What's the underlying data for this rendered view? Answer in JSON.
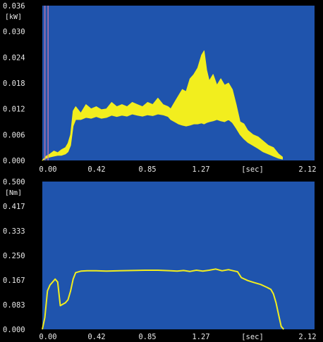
{
  "colors": {
    "plot_bg": "#1f54ad",
    "frame": "#000000",
    "trace": "#f2ee1e",
    "cursor": "#c878a8",
    "text": "#e8e8e8"
  },
  "chart_data": [
    {
      "type": "area",
      "ylabel": "[kW]",
      "xlabel": "[sec]",
      "xlim": [
        0.0,
        2.12
      ],
      "ylim": [
        0.0,
        0.036
      ],
      "x_ticks": [
        "0.00",
        "0.42",
        "0.85",
        "1.27",
        "2.12"
      ],
      "x_unit_label": "[sec]",
      "y_ticks": [
        "0.000",
        "0.006",
        "0.012",
        "0.018",
        "0.024",
        "0.030",
        "0.036"
      ],
      "grid": false,
      "series": [
        {
          "upper": {
            "x": [
              0.0,
              0.03,
              0.06,
              0.09,
              0.12,
              0.15,
              0.18,
              0.2,
              0.22,
              0.24,
              0.26,
              0.3,
              0.34,
              0.38,
              0.42,
              0.46,
              0.5,
              0.54,
              0.58,
              0.62,
              0.66,
              0.7,
              0.74,
              0.78,
              0.82,
              0.86,
              0.9,
              0.94,
              0.98,
              1.0,
              1.03,
              1.06,
              1.09,
              1.12,
              1.15,
              1.18,
              1.21,
              1.24,
              1.26,
              1.28,
              1.3,
              1.33,
              1.36,
              1.39,
              1.42,
              1.45,
              1.48,
              1.51,
              1.54,
              1.57,
              1.6,
              1.64,
              1.68,
              1.72,
              1.76,
              1.8,
              1.84,
              1.87
            ],
            "y": [
              0.0,
              0.001,
              0.0015,
              0.0022,
              0.0018,
              0.0025,
              0.003,
              0.004,
              0.006,
              0.0115,
              0.0125,
              0.011,
              0.013,
              0.012,
              0.0125,
              0.0118,
              0.012,
              0.0135,
              0.0125,
              0.013,
              0.0125,
              0.0135,
              0.013,
              0.0125,
              0.0135,
              0.013,
              0.0145,
              0.013,
              0.0125,
              0.012,
              0.0135,
              0.015,
              0.0165,
              0.016,
              0.019,
              0.02,
              0.0215,
              0.0245,
              0.0255,
              0.021,
              0.0185,
              0.02,
              0.0175,
              0.019,
              0.0175,
              0.018,
              0.0165,
              0.013,
              0.009,
              0.0085,
              0.007,
              0.006,
              0.0055,
              0.0045,
              0.0035,
              0.003,
              0.0015,
              0.0008
            ]
          },
          "lower": {
            "x": [
              0.0,
              0.03,
              0.06,
              0.09,
              0.12,
              0.15,
              0.18,
              0.2,
              0.22,
              0.24,
              0.26,
              0.3,
              0.34,
              0.38,
              0.42,
              0.46,
              0.5,
              0.54,
              0.58,
              0.62,
              0.66,
              0.7,
              0.74,
              0.78,
              0.82,
              0.86,
              0.9,
              0.94,
              0.98,
              1.0,
              1.03,
              1.06,
              1.09,
              1.12,
              1.15,
              1.18,
              1.21,
              1.24,
              1.26,
              1.28,
              1.3,
              1.33,
              1.36,
              1.39,
              1.42,
              1.45,
              1.48,
              1.51,
              1.54,
              1.57,
              1.6,
              1.64,
              1.68,
              1.72,
              1.76,
              1.8,
              1.84,
              1.87
            ],
            "y": [
              0.0,
              0.0005,
              0.0008,
              0.001,
              0.0012,
              0.0012,
              0.0015,
              0.002,
              0.0035,
              0.008,
              0.0095,
              0.0095,
              0.01,
              0.0098,
              0.0102,
              0.0098,
              0.01,
              0.0105,
              0.0102,
              0.0105,
              0.0103,
              0.0108,
              0.0105,
              0.0103,
              0.0106,
              0.0104,
              0.0108,
              0.0106,
              0.0102,
              0.0095,
              0.009,
              0.0085,
              0.0082,
              0.008,
              0.0082,
              0.0085,
              0.0085,
              0.0087,
              0.0085,
              0.0088,
              0.009,
              0.0092,
              0.0095,
              0.0092,
              0.009,
              0.0095,
              0.0088,
              0.0075,
              0.006,
              0.005,
              0.0042,
              0.0035,
              0.0028,
              0.002,
              0.0015,
              0.001,
              0.0005,
              0.0003
            ]
          }
        }
      ],
      "cursor_x": [
        0.02,
        0.045
      ]
    },
    {
      "type": "line",
      "ylabel": "[Nm]",
      "xlabel": "[sec]",
      "xlim": [
        0.0,
        2.12
      ],
      "ylim": [
        0.0,
        0.5
      ],
      "x_ticks": [
        "0.00",
        "0.42",
        "0.85",
        "1.27",
        "2.12"
      ],
      "x_unit_label": "[sec]",
      "y_ticks": [
        "0.000",
        "0.083",
        "0.167",
        "0.250",
        "0.333",
        "0.417",
        "0.500"
      ],
      "grid": false,
      "series": [
        {
          "x": [
            0.0,
            0.02,
            0.04,
            0.06,
            0.08,
            0.1,
            0.12,
            0.14,
            0.16,
            0.18,
            0.2,
            0.22,
            0.24,
            0.26,
            0.3,
            0.35,
            0.42,
            0.5,
            0.6,
            0.7,
            0.8,
            0.9,
            1.0,
            1.05,
            1.1,
            1.15,
            1.2,
            1.25,
            1.3,
            1.35,
            1.4,
            1.45,
            1.5,
            1.52,
            1.55,
            1.6,
            1.65,
            1.7,
            1.75,
            1.78,
            1.8,
            1.82,
            1.84,
            1.86,
            1.88
          ],
          "y": [
            0.0,
            0.04,
            0.13,
            0.15,
            0.16,
            0.17,
            0.16,
            0.08,
            0.085,
            0.09,
            0.1,
            0.13,
            0.17,
            0.192,
            0.197,
            0.198,
            0.198,
            0.197,
            0.198,
            0.199,
            0.2,
            0.2,
            0.198,
            0.197,
            0.199,
            0.196,
            0.2,
            0.197,
            0.2,
            0.204,
            0.198,
            0.202,
            0.197,
            0.195,
            0.175,
            0.165,
            0.158,
            0.152,
            0.142,
            0.135,
            0.12,
            0.09,
            0.05,
            0.01,
            0.0
          ]
        }
      ]
    }
  ]
}
